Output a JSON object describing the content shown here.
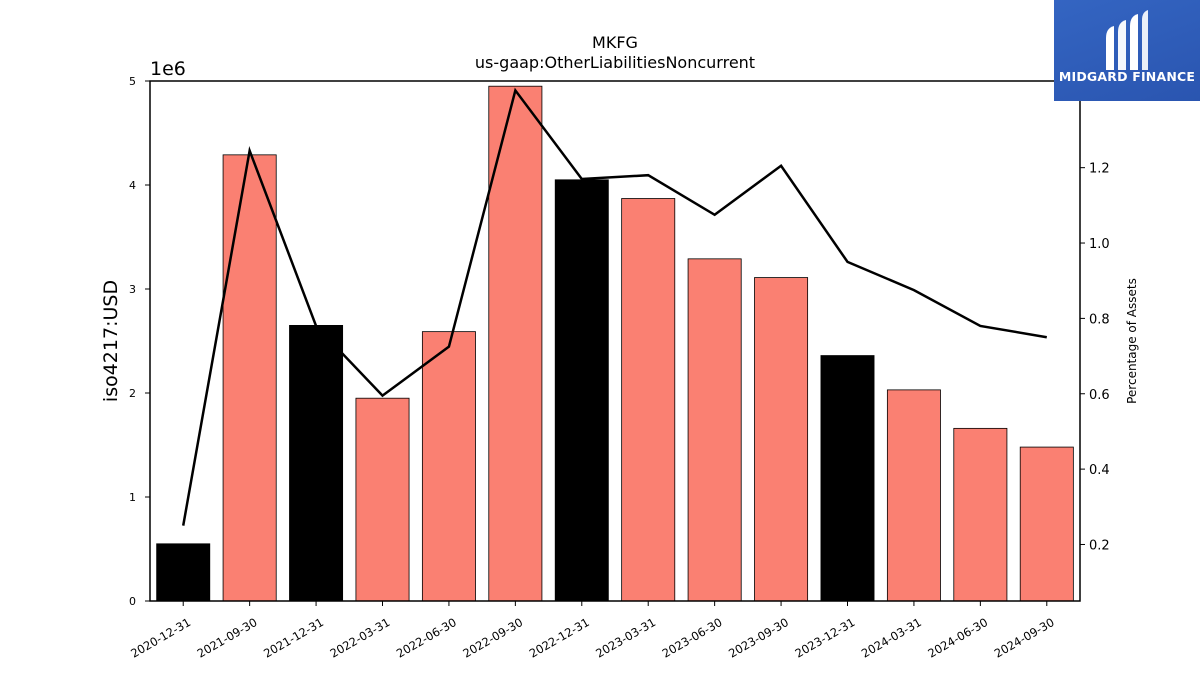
{
  "chart_data": {
    "type": "bar",
    "title": "MKFG",
    "subtitle": "us-gaap:OtherLiabilitiesNoncurrent",
    "ylabel": "iso4217:USD",
    "y_offset_label": "1e6",
    "y2label": "Percentage of Assets",
    "categories": [
      "2020-12-31",
      "2021-09-30",
      "2021-12-31",
      "2022-03-31",
      "2022-06-30",
      "2022-09-30",
      "2022-12-31",
      "2023-03-31",
      "2023-06-30",
      "2023-09-30",
      "2023-12-31",
      "2024-03-31",
      "2024-06-30",
      "2024-09-30"
    ],
    "values": [
      550000,
      4290000,
      2650000,
      1950000,
      2590000,
      4950000,
      4050000,
      3870000,
      3290000,
      3110000,
      2360000,
      2030000,
      1660000,
      1480000
    ],
    "bar_colors": [
      "#000000",
      "#fa8072",
      "#000000",
      "#fa8072",
      "#fa8072",
      "#fa8072",
      "#000000",
      "#fa8072",
      "#fa8072",
      "#fa8072",
      "#000000",
      "#fa8072",
      "#fa8072",
      "#fa8072"
    ],
    "line_values": [
      0.25,
      1.245,
      0.78,
      0.595,
      0.725,
      1.405,
      1.17,
      1.18,
      1.075,
      1.205,
      0.95,
      0.875,
      0.78,
      0.75
    ],
    "line_color": "#000000",
    "ylim": [
      0,
      5000000
    ],
    "y2lim": [
      0.05,
      1.43
    ],
    "yticks": [
      0,
      1,
      2,
      3,
      4,
      5
    ],
    "y2ticks": [
      0.2,
      0.4,
      0.6,
      0.8,
      1.0,
      1.2,
      1.4
    ],
    "y2tick_labels": [
      "0.2",
      "0.4",
      "0.6",
      "0.8",
      "1.0",
      "1.2",
      "1.4"
    ],
    "grid": false,
    "legend": "none"
  },
  "logo": {
    "text": "MIDGARD FINANCE",
    "bg_color": "#2f5fb8"
  }
}
